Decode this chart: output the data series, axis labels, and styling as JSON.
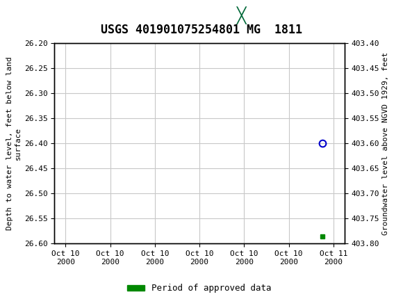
{
  "title": "USGS 401901075254801 MG  1811",
  "header_bg_color": "#006838",
  "plot_bg_color": "#ffffff",
  "grid_color": "#c8c8c8",
  "ylabel_left": "Depth to water level, feet below land\nsurface",
  "ylabel_right": "Groundwater level above NGVD 1929, feet",
  "ylim_left": [
    26.2,
    26.6
  ],
  "ylim_right": [
    403.8,
    403.4
  ],
  "yticks_left": [
    26.2,
    26.25,
    26.3,
    26.35,
    26.4,
    26.45,
    26.5,
    26.55,
    26.6
  ],
  "yticks_right": [
    403.8,
    403.75,
    403.7,
    403.65,
    403.6,
    403.55,
    403.5,
    403.45,
    403.4
  ],
  "yticks_right_labels": [
    "403.80",
    "403.75",
    "403.70",
    "403.65",
    "403.60",
    "403.55",
    "403.50",
    "403.45",
    "403.40"
  ],
  "data_point_x_hours": 23.0,
  "data_point_y": 26.4,
  "data_point_color": "#0000cc",
  "approved_point_x_hours": 23.0,
  "approved_point_y": 26.585,
  "approved_point_color": "#008800",
  "legend_label": "Period of approved data",
  "legend_color": "#008800",
  "font_family": "monospace",
  "title_fontsize": 12,
  "axis_label_fontsize": 8,
  "tick_fontsize": 8,
  "x_start_day": "2000-10-10",
  "x_tick_hours": [
    0,
    4,
    8,
    12,
    16,
    20,
    24
  ],
  "x_tick_labels": [
    "Oct 10\n2000",
    "Oct 10\n2000",
    "Oct 10\n2000",
    "Oct 10\n2000",
    "Oct 10\n2000",
    "Oct 10\n2000",
    "Oct 11\n2000"
  ],
  "xlim_hours": [
    -1,
    25
  ]
}
